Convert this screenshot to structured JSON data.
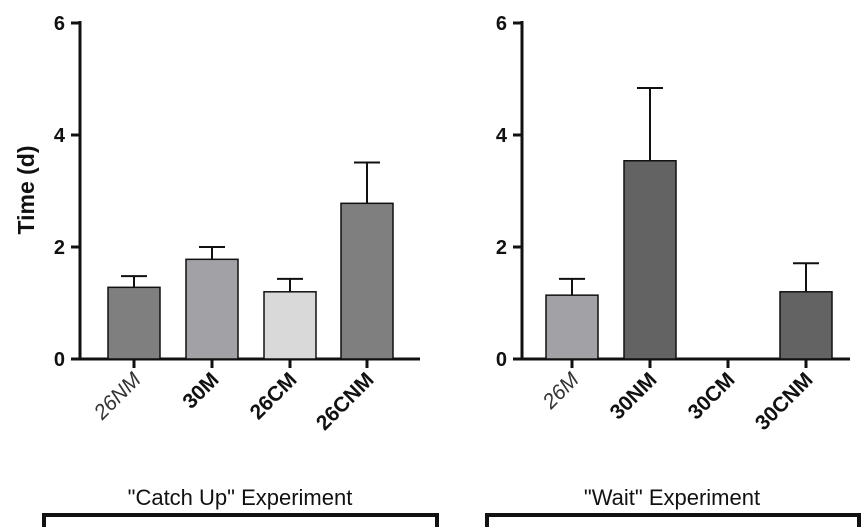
{
  "chart_data": [
    {
      "type": "bar",
      "group_label": "\"Catch Up\" Experiment",
      "ylabel": "Time  (d)",
      "ylim": [
        0,
        6
      ],
      "yticks": [
        "0",
        "2",
        "4",
        "6"
      ],
      "categories": [
        {
          "label": "26NM",
          "style": "italic"
        },
        {
          "label": "30M",
          "style": "bold"
        },
        {
          "label": "26CM",
          "style": "bold"
        },
        {
          "label": "26CNM",
          "style": "bold"
        }
      ],
      "values": [
        1.28,
        1.78,
        1.2,
        2.78
      ],
      "errors": [
        0.2,
        0.22,
        0.23,
        0.73
      ],
      "colors": [
        "#7f7f7f",
        "#a1a1a6",
        "#d9d9d9",
        "#7f7f7f"
      ]
    },
    {
      "type": "bar",
      "group_label": "\"Wait\" Experiment",
      "ylabel": "",
      "ylim": [
        0,
        6
      ],
      "yticks": [
        "0",
        "2",
        "4",
        "6"
      ],
      "categories": [
        {
          "label": "26M",
          "style": "italic"
        },
        {
          "label": "30NM",
          "style": "bold"
        },
        {
          "label": "30CM",
          "style": "bold"
        },
        {
          "label": "30CNM",
          "style": "bold"
        }
      ],
      "values": [
        1.14,
        3.54,
        0,
        1.2
      ],
      "errors": [
        0.29,
        1.3,
        0,
        0.51
      ],
      "colors": [
        "#a1a1a6",
        "#636363",
        "#636363",
        "#636363"
      ]
    }
  ]
}
